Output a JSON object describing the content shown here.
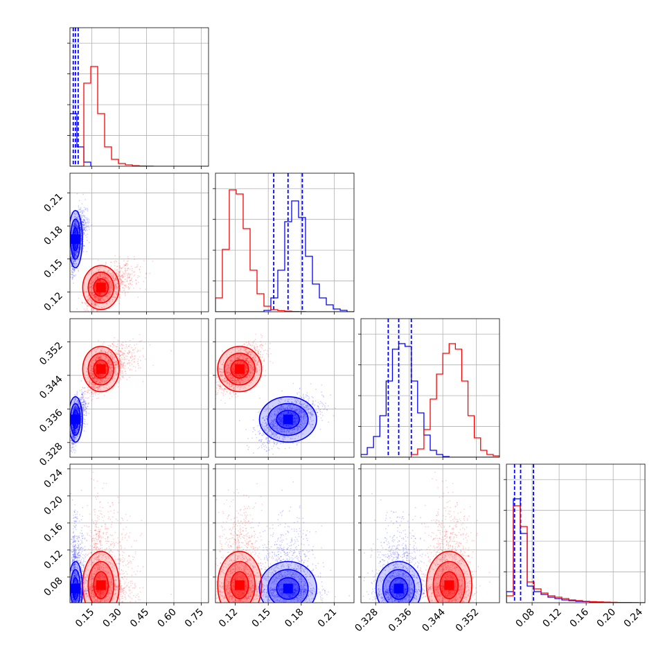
{
  "chart_data": {
    "type": "corner",
    "params": [
      "p1",
      "p2",
      "p3",
      "p4"
    ],
    "param_labels": [
      "",
      "",
      "",
      ""
    ],
    "grid": true,
    "colors": {
      "series_a": "#0000ff",
      "series_b": "#ff0000"
    },
    "axes": [
      {
        "range": [
          0.03,
          0.79
        ],
        "ticks": [
          0.15,
          0.3,
          0.45,
          0.6,
          0.75
        ],
        "tick_labels": [
          "0.15",
          "0.30",
          "0.45",
          "0.60",
          "0.75"
        ]
      },
      {
        "range": [
          0.102,
          0.228
        ],
        "ticks": [
          0.12,
          0.15,
          0.18,
          0.21
        ],
        "tick_labels": [
          "0.12",
          "0.15",
          "0.18",
          "0.21"
        ]
      },
      {
        "range": [
          0.3245,
          0.3575
        ],
        "ticks": [
          0.328,
          0.336,
          0.344,
          0.352
        ],
        "tick_labels": [
          "0.328",
          "0.336",
          "0.344",
          "0.352"
        ]
      },
      {
        "range": [
          0.042,
          0.247
        ],
        "ticks": [
          0.08,
          0.12,
          0.16,
          0.2,
          0.24
        ],
        "tick_labels": [
          "0.08",
          "0.12",
          "0.16",
          "0.20",
          "0.24"
        ]
      }
    ],
    "series": [
      {
        "color": "#0000ff",
        "medians": [
          0.06,
          0.168,
          0.3335,
          0.063
        ],
        "sigmas": [
          0.015,
          0.013,
          0.0027,
          0.02
        ],
        "quantiles": [
          [
            0.048,
            0.06,
            0.075
          ],
          [
            0.155,
            0.168,
            0.181
          ],
          [
            0.331,
            0.3335,
            0.3365
          ],
          [
            0.054,
            0.063,
            0.082
          ]
        ],
        "histograms": [
          {
            "edges": [
              0.03,
              0.068,
              0.106,
              0.144
            ],
            "counts": [
              0.38,
              0.14,
              0.03
            ]
          },
          {
            "edges": [
              0.102,
              0.1083,
              0.1146,
              0.1209,
              0.1272,
              0.1335,
              0.1398,
              0.1461,
              0.1524,
              0.1587,
              0.165,
              0.1713,
              0.1776,
              0.1839,
              0.1902,
              0.1965,
              0.2028,
              0.2091,
              0.2154,
              0.2217,
              0.228
            ],
            "counts": [
              0,
              0,
              0,
              0,
              0,
              0,
              0,
              0.01,
              0.1,
              0.3,
              0.65,
              0.8,
              0.68,
              0.4,
              0.2,
              0.1,
              0.05,
              0.02,
              0.01,
              0
            ]
          },
          {
            "edges": [
              0.3245,
              0.326,
              0.3275,
              0.329,
              0.3305,
              0.332,
              0.3335,
              0.335,
              0.3365,
              0.338,
              0.3395,
              0.341,
              0.3425,
              0.344,
              0.3455,
              0.347,
              0.3485,
              0.35,
              0.3515,
              0.353,
              0.3545,
              0.356,
              0.3575
            ],
            "counts": [
              0.02,
              0.07,
              0.15,
              0.3,
              0.55,
              0.78,
              0.82,
              0.8,
              0.55,
              0.32,
              0.16,
              0.05,
              0.02,
              0.005,
              0,
              0,
              0,
              0,
              0,
              0,
              0,
              0
            ]
          },
          {
            "edges": [
              0.042,
              0.05225,
              0.0625,
              0.07275,
              0.083,
              0.09325,
              0.1035,
              0.11375,
              0.124,
              0.13425,
              0.1445,
              0.15475,
              0.165,
              0.17525,
              0.1855,
              0.19575,
              0.206,
              0.21625,
              0.2265,
              0.23675,
              0.247
            ],
            "counts": [
              0.08,
              0.75,
              0.5,
              0.12,
              0.08,
              0.06,
              0.04,
              0.03,
              0.02,
              0.015,
              0.01,
              0.008,
              0.006,
              0.004,
              0.003,
              0.002,
              0.001,
              0.001,
              0,
              0
            ]
          }
        ]
      },
      {
        "color": "#ff0000",
        "medians": [
          0.2,
          0.124,
          0.3455,
          0.068
        ],
        "sigmas": [
          0.05,
          0.01,
          0.0027,
          0.025
        ],
        "quantiles": [],
        "histograms": [
          {
            "edges": [
              0.03,
              0.068,
              0.106,
              0.144,
              0.182,
              0.22,
              0.258,
              0.296,
              0.334,
              0.372,
              0.41,
              0.448,
              0.486,
              0.524,
              0.562,
              0.6,
              0.638,
              0.676,
              0.714,
              0.752,
              0.79
            ],
            "counts": [
              0,
              0,
              0.6,
              0.72,
              0.38,
              0.14,
              0.05,
              0.02,
              0.01,
              0.004,
              0.002,
              0.001,
              0,
              0,
              0,
              0,
              0,
              0,
              0,
              0
            ]
          },
          {
            "edges": [
              0.102,
              0.1083,
              0.1146,
              0.1209,
              0.1272,
              0.1335,
              0.1398,
              0.1461,
              0.1524,
              0.1587,
              0.165,
              0.1713,
              0.1776,
              0.1839,
              0.1902,
              0.1965,
              0.2028,
              0.2091,
              0.2154,
              0.2217,
              0.228
            ],
            "counts": [
              0.1,
              0.45,
              0.88,
              0.85,
              0.6,
              0.3,
              0.13,
              0.04,
              0.015,
              0.008,
              0.004,
              0.002,
              0.001,
              0,
              0,
              0,
              0,
              0,
              0,
              0
            ]
          },
          {
            "edges": [
              0.3245,
              0.326,
              0.3275,
              0.329,
              0.3305,
              0.332,
              0.3335,
              0.335,
              0.3365,
              0.338,
              0.3395,
              0.341,
              0.3425,
              0.344,
              0.3455,
              0.347,
              0.3485,
              0.35,
              0.3515,
              0.353,
              0.3545,
              0.356,
              0.3575
            ],
            "counts": [
              0,
              0,
              0,
              0,
              0,
              0,
              0,
              0,
              0.02,
              0.06,
              0.2,
              0.42,
              0.6,
              0.75,
              0.82,
              0.78,
              0.55,
              0.3,
              0.14,
              0.05,
              0.02,
              0.01
            ]
          },
          {
            "edges": [
              0.042,
              0.05225,
              0.0625,
              0.07275,
              0.083,
              0.09325,
              0.1035,
              0.11375,
              0.124,
              0.13425,
              0.1445,
              0.15475,
              0.165,
              0.17525,
              0.1855,
              0.19575,
              0.206,
              0.21625,
              0.2265,
              0.23675,
              0.247
            ],
            "counts": [
              0.05,
              0.7,
              0.55,
              0.15,
              0.1,
              0.07,
              0.05,
              0.04,
              0.03,
              0.02,
              0.015,
              0.01,
              0.008,
              0.006,
              0.004,
              0.003,
              0.002,
              0.001,
              0.001,
              0
            ]
          }
        ]
      }
    ]
  }
}
